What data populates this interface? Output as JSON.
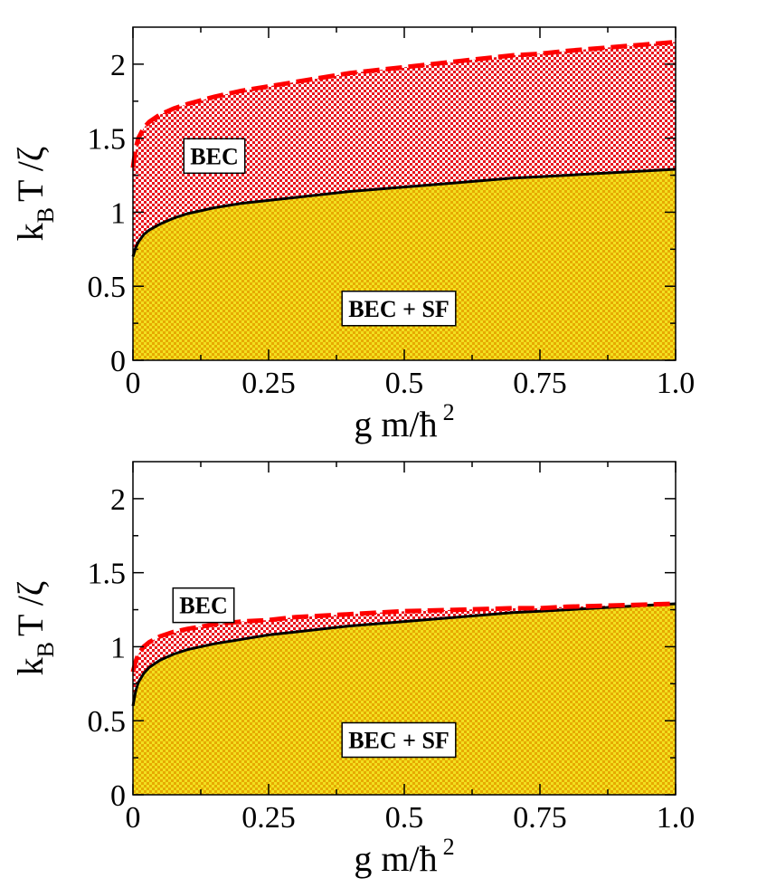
{
  "colors": {
    "bec_fill": "#e8141e",
    "sf_fill": "#e6aa00",
    "sf_hatch": "#f2e020",
    "upper_curve": "#ff0000",
    "lower_curve": "#000000"
  },
  "chart_data": [
    {
      "type": "area",
      "panel": "top",
      "xlabel": "g m/ħ",
      "xlabel_sup": "2",
      "ylabel": "k",
      "ylabel_sub": "B",
      "ylabel_rest": "T /ζ",
      "xlim": [
        0,
        1.0
      ],
      "ylim": [
        0,
        2.25
      ],
      "xticks": [
        0,
        0.25,
        0.5,
        0.75,
        1.0
      ],
      "xtick_labels": [
        "0",
        "0.25",
        "0.5",
        "0.75",
        "1.0"
      ],
      "yticks": [
        0,
        0.5,
        1,
        1.5,
        2
      ],
      "ytick_labels": [
        "0",
        "0.5",
        "1",
        "1.5",
        "2"
      ],
      "series": [
        {
          "name": "upper boundary (dashed red)",
          "x": [
            0,
            0.005,
            0.01,
            0.02,
            0.03,
            0.05,
            0.075,
            0.1,
            0.15,
            0.2,
            0.25,
            0.3,
            0.4,
            0.5,
            0.6,
            0.7,
            0.75,
            0.8,
            0.9,
            1.0
          ],
          "y": [
            1.3,
            1.43,
            1.5,
            1.57,
            1.61,
            1.66,
            1.7,
            1.73,
            1.78,
            1.82,
            1.85,
            1.88,
            1.94,
            1.98,
            2.02,
            2.06,
            2.07,
            2.09,
            2.12,
            2.15
          ]
        },
        {
          "name": "lower boundary (solid black)",
          "x": [
            0,
            0.005,
            0.01,
            0.02,
            0.03,
            0.05,
            0.075,
            0.1,
            0.15,
            0.2,
            0.25,
            0.3,
            0.4,
            0.5,
            0.6,
            0.7,
            0.75,
            0.8,
            0.9,
            1.0
          ],
          "y": [
            0.7,
            0.76,
            0.8,
            0.85,
            0.88,
            0.92,
            0.96,
            0.99,
            1.03,
            1.06,
            1.08,
            1.1,
            1.14,
            1.17,
            1.2,
            1.23,
            1.24,
            1.25,
            1.27,
            1.29
          ]
        }
      ],
      "regions": [
        {
          "label": "BEC",
          "x": 0.15,
          "y": 1.38
        },
        {
          "label": "BEC + SF",
          "x": 0.49,
          "y": 0.35
        }
      ]
    },
    {
      "type": "area",
      "panel": "bottom",
      "xlabel": "g m/ħ",
      "xlabel_sup": "2",
      "ylabel": "k",
      "ylabel_sub": "B",
      "ylabel_rest": "T /ζ",
      "xlim": [
        0,
        1.0
      ],
      "ylim": [
        0,
        2.25
      ],
      "xticks": [
        0,
        0.25,
        0.5,
        0.75,
        1.0
      ],
      "xtick_labels": [
        "0",
        "0.25",
        "0.5",
        "0.75",
        "1.0"
      ],
      "yticks": [
        0,
        0.5,
        1,
        1.5,
        2
      ],
      "ytick_labels": [
        "0",
        "0.5",
        "1",
        "1.5",
        "2"
      ],
      "series": [
        {
          "name": "upper boundary (dashed red)",
          "x": [
            0,
            0.005,
            0.01,
            0.02,
            0.03,
            0.05,
            0.075,
            0.1,
            0.15,
            0.2,
            0.25,
            0.3,
            0.4,
            0.5,
            0.6,
            0.7,
            0.75,
            0.8,
            0.9,
            1.0
          ],
          "y": [
            0.83,
            0.9,
            0.95,
            1.0,
            1.03,
            1.07,
            1.1,
            1.12,
            1.15,
            1.17,
            1.18,
            1.2,
            1.22,
            1.24,
            1.25,
            1.26,
            1.26,
            1.27,
            1.28,
            1.29
          ]
        },
        {
          "name": "lower boundary (solid black)",
          "x": [
            0,
            0.005,
            0.01,
            0.02,
            0.03,
            0.05,
            0.075,
            0.1,
            0.15,
            0.2,
            0.25,
            0.3,
            0.4,
            0.5,
            0.6,
            0.7,
            0.75,
            0.8,
            0.9,
            1.0
          ],
          "y": [
            0.6,
            0.7,
            0.76,
            0.82,
            0.86,
            0.91,
            0.95,
            0.98,
            1.02,
            1.05,
            1.08,
            1.1,
            1.14,
            1.17,
            1.2,
            1.23,
            1.24,
            1.25,
            1.27,
            1.29
          ]
        }
      ],
      "regions": [
        {
          "label": "BEC",
          "x": 0.13,
          "y": 1.28
        },
        {
          "label": "BEC + SF",
          "x": 0.49,
          "y": 0.37
        }
      ]
    }
  ]
}
